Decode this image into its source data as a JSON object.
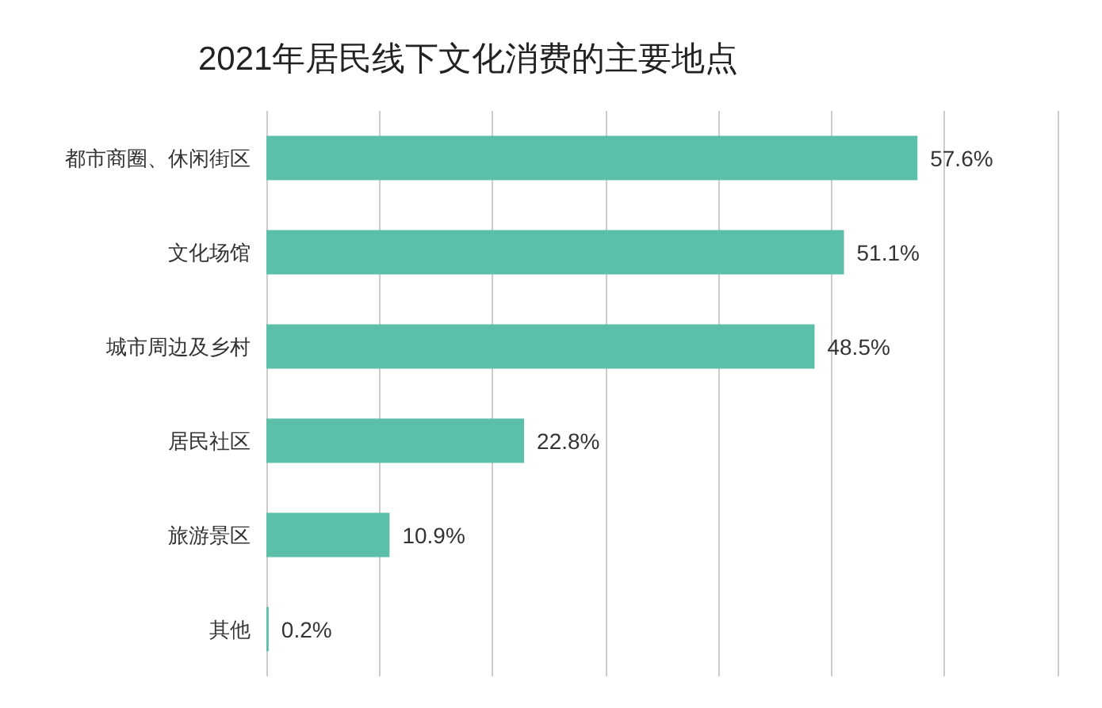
{
  "chart_data": {
    "type": "bar",
    "orientation": "horizontal",
    "title": "2021年居民线下文化消费的主要地点",
    "categories": [
      "都市商圈、休闲街区",
      "文化场馆",
      "城市周边及乡村",
      "居民社区",
      "旅游景区",
      "其他"
    ],
    "values": [
      57.6,
      51.1,
      48.5,
      22.8,
      10.9,
      0.2
    ],
    "value_labels": [
      "57.6%",
      "51.1%",
      "48.5%",
      "22.8%",
      "10.9%",
      "0.2%"
    ],
    "color": "#5cbfa9",
    "xlim": [
      0,
      70
    ],
    "xticks": [
      {
        "value": 0,
        "label": null
      },
      {
        "value": 10,
        "label": null
      },
      {
        "value": 20,
        "label": null
      },
      {
        "value": 30,
        "label": null
      },
      {
        "value": 40,
        "label": null
      },
      {
        "value": 50,
        "label": null
      },
      {
        "value": 60,
        "label": null
      },
      {
        "value": 70,
        "label": null
      }
    ],
    "grid": "x",
    "tick_labels": "y"
  }
}
